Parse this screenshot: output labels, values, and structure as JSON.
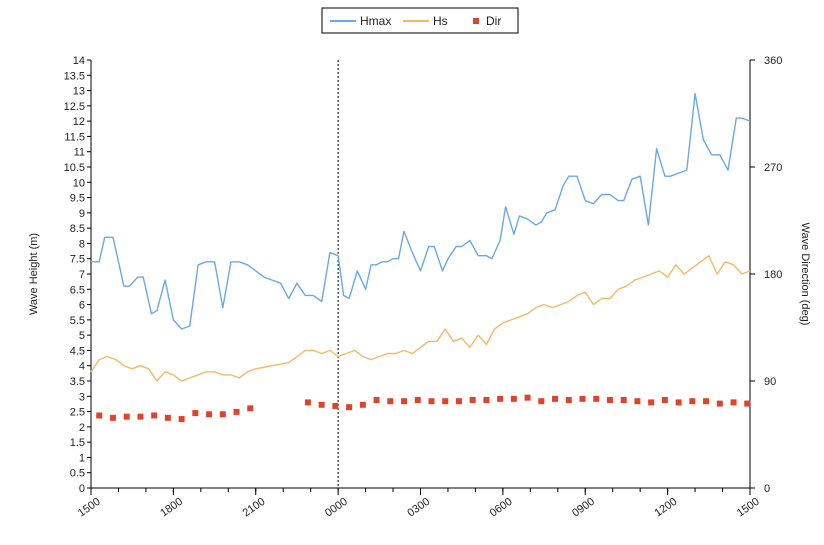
{
  "chart_data": {
    "type": "line",
    "legend": [
      {
        "name": "Hmax",
        "color": "#6aa8e8",
        "marker": "line"
      },
      {
        "name": "Hs",
        "color": "#f5b964",
        "marker": "line"
      },
      {
        "name": "Dir",
        "color": "#e0432b",
        "marker": "square"
      }
    ],
    "legend_position": "top-center",
    "ylabel_left": "Wave Height (m)",
    "ylabel_right": "Wave Direction (deg)",
    "ylim_left": [
      0,
      14
    ],
    "ylim_right": [
      0,
      360
    ],
    "yticks_right": [
      "0",
      "90",
      "180",
      "270",
      "360"
    ],
    "yticks_left": [
      "0",
      "0.5",
      "1",
      "1.5",
      "2",
      "2.5",
      "3",
      "3.5",
      "4",
      "4.5",
      "5",
      "5.5",
      "6",
      "6.5",
      "7",
      "7.5",
      "8",
      "8.5",
      "9",
      "9.5",
      "10",
      "10.5",
      "11",
      "11.5",
      "12",
      "12.5",
      "13",
      "13.5",
      "14"
    ],
    "x_range_hours": [
      0,
      24
    ],
    "xticks": [
      {
        "hour": 0,
        "label": "1500"
      },
      {
        "hour": 3,
        "label": "1800"
      },
      {
        "hour": 6,
        "label": "2100"
      },
      {
        "hour": 9,
        "label": "0000"
      },
      {
        "hour": 12,
        "label": "0300"
      },
      {
        "hour": 15,
        "label": "0600"
      },
      {
        "hour": 18,
        "label": "0900"
      },
      {
        "hour": 21,
        "label": "1200"
      },
      {
        "hour": 24,
        "label": "1500"
      }
    ],
    "now_marker_hour": 9,
    "grid": false,
    "series": [
      {
        "name": "Hmax",
        "color": "#6aa8e8",
        "x": [
          0,
          0.3,
          0.5,
          0.8,
          1.2,
          1.4,
          1.7,
          1.9,
          2.2,
          2.4,
          2.7,
          3.0,
          3.3,
          3.6,
          3.9,
          4.2,
          4.5,
          4.8,
          5.1,
          5.4,
          5.7,
          6.0,
          6.3,
          6.6,
          6.9,
          7.2,
          7.5,
          7.8,
          8.1,
          8.4,
          8.7,
          9.0,
          9.2,
          9.4,
          9.7,
          10.0,
          10.2,
          10.4,
          10.6,
          10.8,
          11.0,
          11.2,
          11.4,
          11.7,
          12.0,
          12.3,
          12.5,
          12.8,
          13.0,
          13.3,
          13.5,
          13.8,
          14.1,
          14.4,
          14.6,
          14.9,
          15.1,
          15.4,
          15.6,
          15.9,
          16.2,
          16.4,
          16.6,
          16.9,
          17.2,
          17.4,
          17.7,
          18.0,
          18.3,
          18.6,
          18.9,
          19.2,
          19.4,
          19.7,
          20.0,
          20.3,
          20.6,
          20.9,
          21.1,
          21.4,
          21.7,
          22.0,
          22.3,
          22.6,
          22.9,
          23.2,
          23.5,
          23.7,
          24.0
        ],
        "values": [
          7.4,
          7.4,
          8.2,
          8.2,
          6.6,
          6.6,
          6.9,
          6.9,
          5.7,
          5.8,
          6.8,
          5.5,
          5.2,
          5.3,
          7.3,
          7.4,
          7.4,
          5.9,
          7.4,
          7.4,
          7.3,
          7.1,
          6.9,
          6.8,
          6.7,
          6.2,
          6.7,
          6.3,
          6.3,
          6.1,
          7.7,
          7.6,
          6.3,
          6.2,
          7.1,
          6.5,
          7.3,
          7.3,
          7.4,
          7.4,
          7.5,
          7.5,
          8.4,
          7.7,
          7.1,
          7.9,
          7.9,
          7.1,
          7.5,
          7.9,
          7.9,
          8.1,
          7.6,
          7.6,
          7.5,
          8.1,
          9.2,
          8.3,
          8.9,
          8.8,
          8.6,
          8.7,
          9.0,
          9.1,
          9.9,
          10.2,
          10.2,
          9.4,
          9.3,
          9.6,
          9.6,
          9.4,
          9.4,
          10.1,
          10.2,
          8.6,
          11.1,
          10.2,
          10.2,
          10.3,
          10.4,
          12.9,
          11.4,
          10.9,
          10.9,
          10.4,
          12.1,
          12.1,
          12.0
        ]
      },
      {
        "name": "Hs",
        "color": "#f5b964",
        "x": [
          0,
          0.3,
          0.6,
          0.9,
          1.2,
          1.5,
          1.8,
          2.1,
          2.4,
          2.7,
          3.0,
          3.3,
          3.6,
          3.9,
          4.2,
          4.5,
          4.8,
          5.1,
          5.4,
          5.7,
          6.0,
          6.6,
          7.2,
          7.8,
          8.1,
          8.4,
          8.7,
          9.0,
          9.3,
          9.6,
          9.9,
          10.2,
          10.5,
          10.8,
          11.1,
          11.4,
          11.7,
          12.0,
          12.3,
          12.6,
          12.9,
          13.2,
          13.5,
          13.8,
          14.1,
          14.4,
          14.7,
          15.0,
          15.3,
          15.6,
          15.9,
          16.2,
          16.5,
          16.8,
          17.1,
          17.4,
          17.7,
          18.0,
          18.3,
          18.6,
          18.9,
          19.2,
          19.5,
          19.8,
          20.1,
          20.4,
          20.7,
          21.0,
          21.3,
          21.6,
          21.9,
          22.2,
          22.5,
          22.8,
          23.1,
          23.4,
          23.7,
          24.0
        ],
        "values": [
          3.8,
          4.2,
          4.3,
          4.2,
          4.0,
          3.9,
          4.0,
          3.9,
          3.5,
          3.8,
          3.7,
          3.5,
          3.6,
          3.7,
          3.8,
          3.8,
          3.7,
          3.7,
          3.6,
          3.8,
          3.9,
          4.0,
          4.1,
          4.5,
          4.5,
          4.4,
          4.5,
          4.3,
          4.4,
          4.5,
          4.3,
          4.2,
          4.3,
          4.4,
          4.4,
          4.5,
          4.4,
          4.6,
          4.8,
          4.8,
          5.2,
          4.8,
          4.9,
          4.6,
          5.0,
          4.7,
          5.2,
          5.4,
          5.5,
          5.6,
          5.7,
          5.9,
          6.0,
          5.9,
          6.0,
          6.1,
          6.3,
          6.4,
          6.0,
          6.2,
          6.2,
          6.5,
          6.6,
          6.8,
          6.9,
          7.0,
          7.1,
          6.9,
          7.3,
          7.0,
          7.2,
          7.4,
          7.6,
          7.0,
          7.4,
          7.3,
          7.0,
          7.1
        ]
      },
      {
        "name": "Dir",
        "color": "#e0432b",
        "x": [
          0.3,
          0.8,
          1.3,
          1.8,
          2.3,
          2.8,
          3.3,
          3.8,
          4.3,
          4.8,
          5.3,
          5.8,
          7.9,
          8.4,
          8.9,
          9.4,
          9.9,
          10.4,
          10.9,
          11.4,
          11.9,
          12.4,
          12.9,
          13.4,
          13.9,
          14.4,
          14.9,
          15.4,
          15.9,
          16.4,
          16.9,
          17.4,
          17.9,
          18.4,
          18.9,
          19.4,
          19.9,
          20.4,
          20.9,
          21.4,
          21.9,
          22.4,
          22.9,
          23.4,
          23.9
        ],
        "values": [
          61,
          59,
          60,
          60,
          61,
          59,
          58,
          63,
          62,
          62,
          64,
          67,
          72,
          70,
          69,
          68,
          70,
          74,
          73,
          73,
          74,
          73,
          73,
          73,
          74,
          74,
          75,
          75,
          76,
          73,
          75,
          74,
          75,
          75,
          74,
          74,
          73,
          72,
          74,
          72,
          73,
          73,
          71,
          72,
          71
        ]
      }
    ]
  }
}
